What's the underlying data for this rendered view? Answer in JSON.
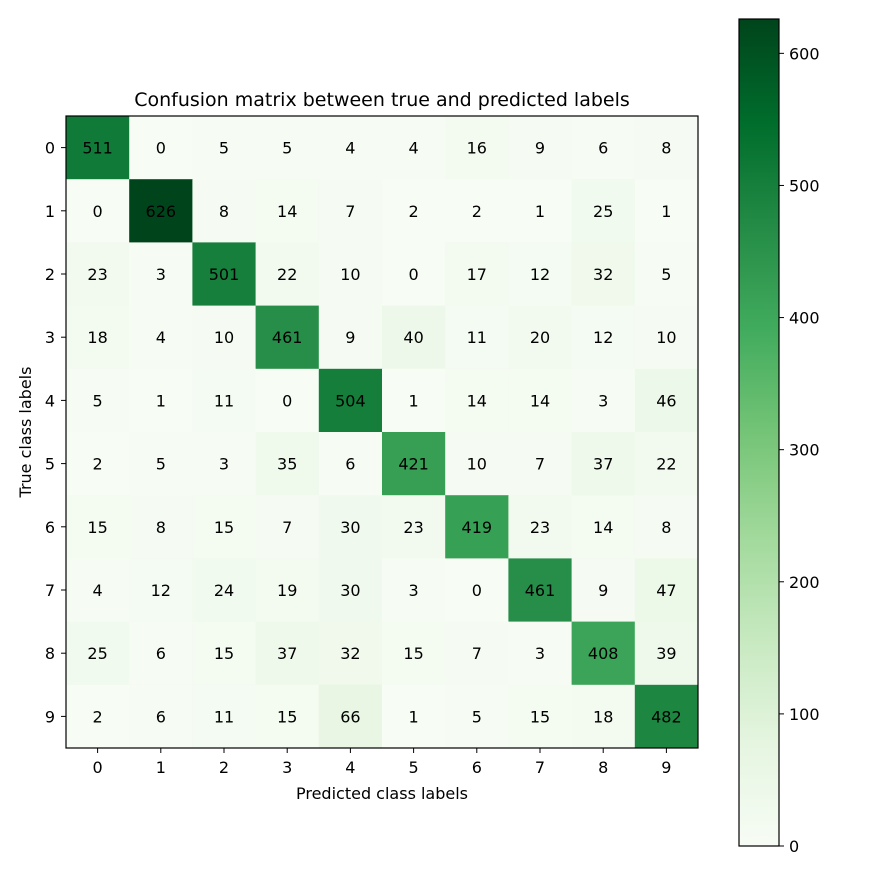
{
  "chart_data": {
    "type": "heatmap",
    "title": "Confusion matrix between true and predicted labels",
    "xlabel": "Predicted class labels",
    "ylabel": "True class labels",
    "x_categories": [
      "0",
      "1",
      "2",
      "3",
      "4",
      "5",
      "6",
      "7",
      "8",
      "9"
    ],
    "y_categories": [
      "0",
      "1",
      "2",
      "3",
      "4",
      "5",
      "6",
      "7",
      "8",
      "9"
    ],
    "matrix": [
      [
        511,
        0,
        5,
        5,
        4,
        4,
        16,
        9,
        6,
        8
      ],
      [
        0,
        626,
        8,
        14,
        7,
        2,
        2,
        1,
        25,
        1
      ],
      [
        23,
        3,
        501,
        22,
        10,
        0,
        17,
        12,
        32,
        5
      ],
      [
        18,
        4,
        10,
        461,
        9,
        40,
        11,
        20,
        12,
        10
      ],
      [
        5,
        1,
        11,
        0,
        504,
        1,
        14,
        14,
        3,
        46
      ],
      [
        2,
        5,
        3,
        35,
        6,
        421,
        10,
        7,
        37,
        22
      ],
      [
        15,
        8,
        15,
        7,
        30,
        23,
        419,
        23,
        14,
        8
      ],
      [
        4,
        12,
        24,
        19,
        30,
        3,
        0,
        461,
        9,
        47
      ],
      [
        25,
        6,
        15,
        37,
        32,
        15,
        7,
        3,
        408,
        39
      ],
      [
        2,
        6,
        11,
        15,
        66,
        1,
        5,
        15,
        18,
        482
      ]
    ],
    "colormap": "Greens",
    "colorbar": {
      "min": 0,
      "max": 626,
      "ticks": [
        0,
        100,
        200,
        300,
        400,
        500,
        600
      ],
      "tick_labels": [
        "0",
        "100",
        "200",
        "300",
        "400",
        "500",
        "600"
      ]
    }
  }
}
